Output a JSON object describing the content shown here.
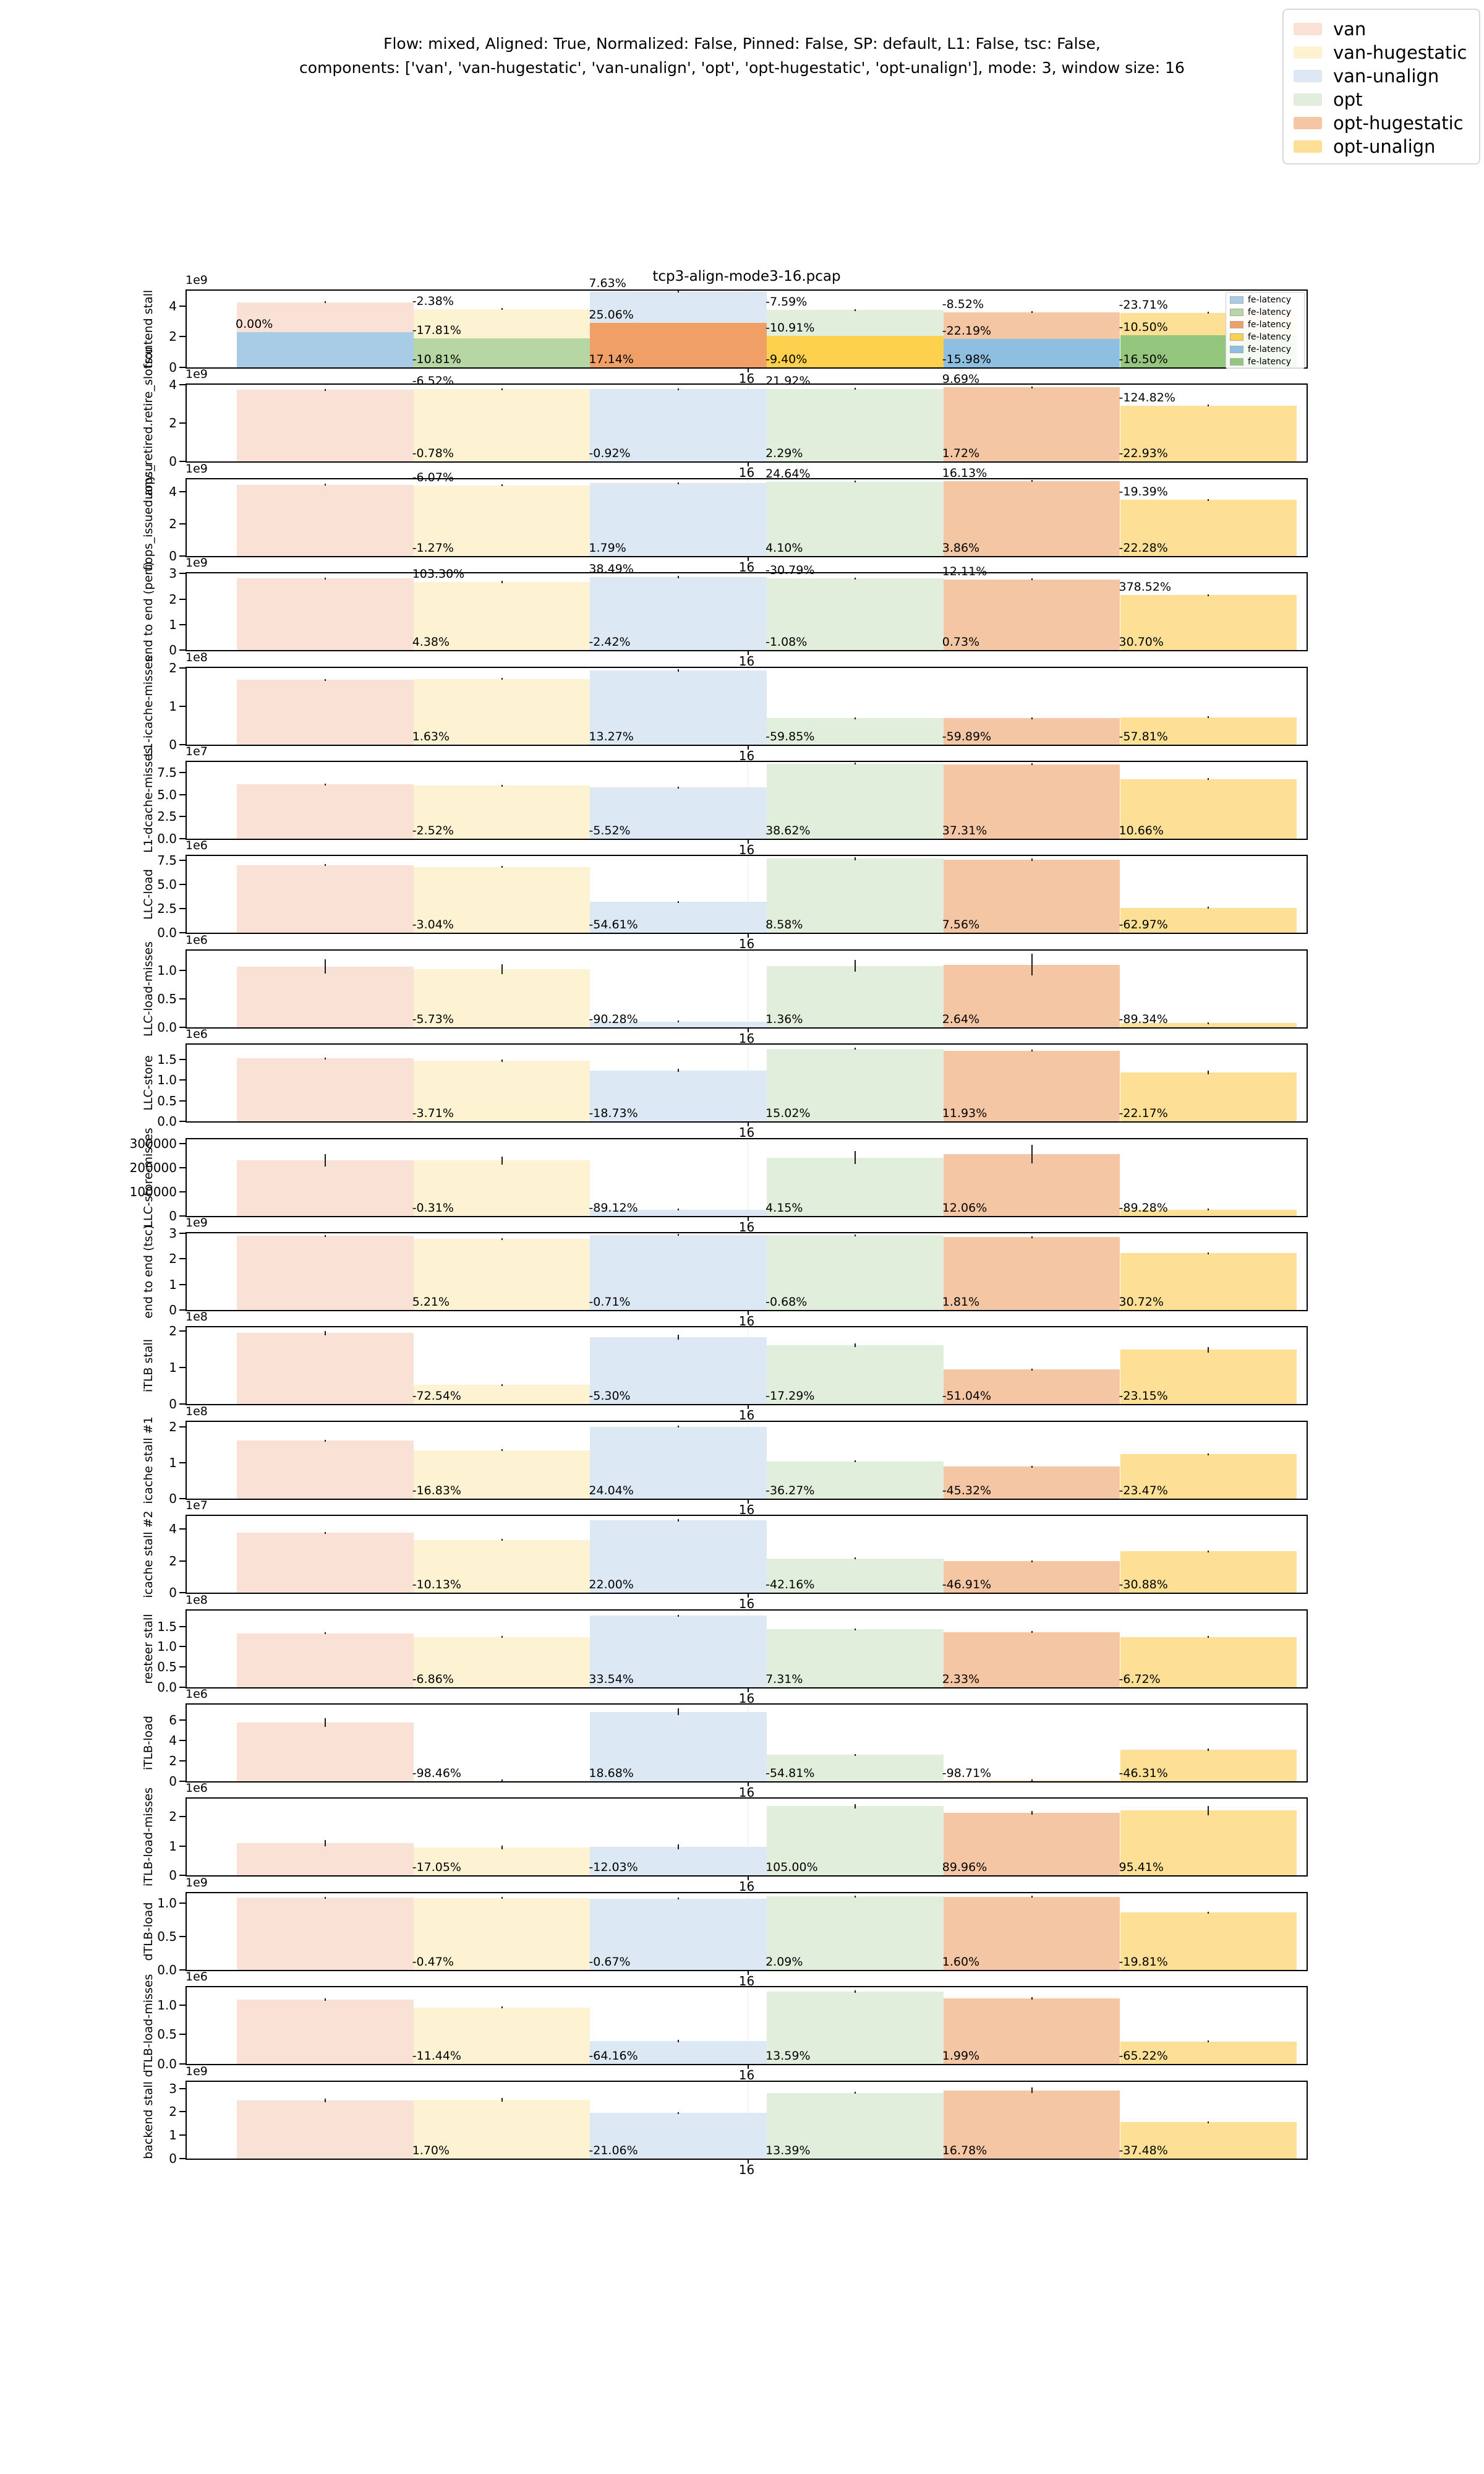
{
  "header": {
    "suptitle_line1": "Flow: mixed, Aligned: True, Normalized: False, Pinned: False, SP: default, L1: False, tsc: False,",
    "suptitle_line2": "components: ['van', 'van-hugestatic', 'van-unalign', 'opt', 'opt-hugestatic', 'opt-unalign'], mode: 3, window size: 16"
  },
  "legend": {
    "position": "upper right",
    "items": [
      {
        "label": "van",
        "color": "#fae1d5"
      },
      {
        "label": "van-hugestatic",
        "color": "#fdf3d2"
      },
      {
        "label": "van-unalign",
        "color": "#dce8f4"
      },
      {
        "label": "opt",
        "color": "#e1eedb"
      },
      {
        "label": "opt-hugestatic",
        "color": "#f5c6a4"
      },
      {
        "label": "opt-unalign",
        "color": "#fde096"
      }
    ]
  },
  "chart_data": {
    "type": "bar",
    "title": "tcp3-align-mode3-16.pcap",
    "x_tick_label": "16",
    "xlabel": "",
    "grid": false,
    "series_names": [
      "van",
      "van-hugestatic",
      "van-unalign",
      "opt",
      "opt-hugestatic",
      "opt-unalign"
    ],
    "bar_colors": [
      "#fae1d5",
      "#fdf3d2",
      "#dce8f4",
      "#e1eedb",
      "#f5c6a4",
      "#fde096"
    ],
    "fe_colors": [
      "#a9cce6",
      "#b6d7a3",
      "#f0a066",
      "#fdd04e",
      "#8fbfe0",
      "#95c67e"
    ],
    "fe_legend_label": "fe-latency",
    "subplots": [
      {
        "ylabel": "frontend stall",
        "scale": "1e9",
        "ymax": 5,
        "yticks": [
          0,
          2,
          4
        ],
        "ytick_labels": [
          "0",
          "2",
          "4"
        ],
        "values": [
          4.25,
          3.8,
          4.95,
          3.75,
          3.6,
          3.55
        ],
        "fe_values": [
          2.3,
          1.9,
          2.9,
          2.05,
          1.85,
          2.1
        ],
        "err": [
          0.05,
          0.04,
          0.06,
          0.04,
          0.05,
          0.05
        ],
        "labels_top": [
          null,
          "-2.38%",
          "7.63%",
          "-7.59%",
          "-8.52%",
          "-23.71%"
        ],
        "labels_mid": [
          "0.00%",
          "-17.81%",
          "25.06%",
          "-10.91%",
          "-22.19%",
          "-10.50%"
        ],
        "labels_bottom": [
          null,
          "-10.81%",
          "17.14%",
          "-9.40%",
          "-15.98%",
          "-16.50%"
        ]
      },
      {
        "ylabel": "uops_retired.retire_slots:u",
        "scale": "1e9",
        "ymax": 4,
        "yticks": [
          0,
          2,
          4
        ],
        "ytick_labels": [
          "0",
          "2",
          "4"
        ],
        "values": [
          3.75,
          3.78,
          3.78,
          3.8,
          3.87,
          2.93
        ],
        "err": [
          0.02,
          0.02,
          0.02,
          0.04,
          0.02,
          0.02
        ],
        "labels_top": [
          null,
          "-6.52%",
          null,
          "21.92%",
          "9.69%",
          "-124.82%"
        ],
        "labels_bottom": [
          null,
          "-0.78%",
          "-0.92%",
          "2.29%",
          "1.72%",
          "-22.93%"
        ]
      },
      {
        "ylabel": "uops_issued.any:u",
        "scale": "1e9",
        "ymax": 4.8,
        "yticks": [
          0,
          2,
          4
        ],
        "ytick_labels": [
          "0",
          "2",
          "4"
        ],
        "values": [
          4.45,
          4.42,
          4.55,
          4.65,
          4.68,
          3.5
        ],
        "err": [
          0.03,
          0.03,
          0.03,
          0.03,
          0.03,
          0.03
        ],
        "labels_top": [
          null,
          "-6.07%",
          null,
          "24.64%",
          "16.13%",
          "-19.39%"
        ],
        "labels_bottom": [
          null,
          "-1.27%",
          "1.79%",
          "4.10%",
          "3.86%",
          "-22.28%"
        ]
      },
      {
        "ylabel": "end to end (perf)",
        "scale": "1e9",
        "ymax": 3,
        "yticks": [
          0,
          1,
          2,
          3
        ],
        "ytick_labels": [
          "0",
          "1",
          "2",
          "3"
        ],
        "values": [
          2.8,
          2.67,
          2.85,
          2.8,
          2.77,
          2.15
        ],
        "err": [
          0.04,
          0.05,
          0.05,
          0.04,
          0.04,
          0.04
        ],
        "labels_top": [
          null,
          "103.30%",
          "38.49%",
          "-30.79%",
          "12.11%",
          "378.52%"
        ],
        "labels_bottom": [
          null,
          "4.38%",
          "-2.42%",
          "-1.08%",
          "0.73%",
          "30.70%"
        ]
      },
      {
        "ylabel": "L1-icache-misses",
        "scale": "1e8",
        "ymax": 2,
        "yticks": [
          0,
          1,
          2
        ],
        "ytick_labels": [
          "0",
          "1",
          "2"
        ],
        "values": [
          1.68,
          1.71,
          1.93,
          0.68,
          0.68,
          0.71
        ],
        "err": [
          0.02,
          0.02,
          0.03,
          0.01,
          0.02,
          0.01
        ],
        "labels_bottom": [
          null,
          "1.63%",
          "13.27%",
          "-59.85%",
          "-59.89%",
          "-57.81%"
        ]
      },
      {
        "ylabel": "L1-dcache-misses",
        "scale": "1e7",
        "ymax": 8.7,
        "yticks": [
          0,
          2.5,
          5,
          7.5
        ],
        "ytick_labels": [
          "0.0",
          "2.5",
          "5.0",
          "7.5"
        ],
        "values": [
          6.15,
          6.0,
          5.8,
          8.5,
          8.45,
          6.75
        ],
        "err": [
          0.08,
          0.1,
          0.08,
          0.05,
          0.05,
          0.07
        ],
        "labels_bottom": [
          null,
          "-2.52%",
          "-5.52%",
          "38.62%",
          "37.31%",
          "10.66%"
        ]
      },
      {
        "ylabel": "LLC-load",
        "scale": "1e6",
        "ymax": 7.9,
        "yticks": [
          0,
          2.5,
          5,
          7.5
        ],
        "ytick_labels": [
          "0.0",
          "2.5",
          "5.0",
          "7.5"
        ],
        "values": [
          7.0,
          6.8,
          3.2,
          7.65,
          7.55,
          2.6
        ],
        "err": [
          0.1,
          0.08,
          0.1,
          0.15,
          0.12,
          0.08
        ],
        "labels_bottom": [
          null,
          "-3.04%",
          "-54.61%",
          "8.58%",
          "7.56%",
          "-62.97%"
        ]
      },
      {
        "ylabel": "LLC-load-misses",
        "scale": "1e6",
        "ymax": 1.35,
        "yticks": [
          0,
          0.5,
          1
        ],
        "ytick_labels": [
          "0.0",
          "0.5",
          "1.0"
        ],
        "values": [
          1.07,
          1.02,
          0.1,
          1.08,
          1.1,
          0.07
        ],
        "err": [
          0.13,
          0.09,
          0.01,
          0.1,
          0.19,
          0.02
        ],
        "labels_bottom": [
          null,
          "-5.73%",
          "-90.28%",
          "1.36%",
          "2.64%",
          "-89.34%"
        ]
      },
      {
        "ylabel": "LLC-store",
        "scale": "1e6",
        "ymax": 1.85,
        "yticks": [
          0,
          0.5,
          1,
          1.5
        ],
        "ytick_labels": [
          "0.0",
          "0.5",
          "1.0",
          "1.5"
        ],
        "values": [
          1.52,
          1.46,
          1.23,
          1.75,
          1.71,
          1.18
        ],
        "err": [
          0.02,
          0.03,
          0.04,
          0.02,
          0.02,
          0.04
        ],
        "labels_bottom": [
          null,
          "-3.71%",
          "-18.73%",
          "15.02%",
          "11.93%",
          "-22.17%"
        ]
      },
      {
        "ylabel": "LLC-store-misses",
        "scale": null,
        "ymax": 320000,
        "yticks": [
          0,
          100000,
          200000,
          300000
        ],
        "ytick_labels": [
          "0",
          "100000",
          "200000",
          "300000"
        ],
        "values": [
          232000,
          230000,
          25000,
          242000,
          258000,
          25000
        ],
        "err": [
          26000,
          16000,
          3000,
          27000,
          39000,
          4000
        ],
        "labels_bottom": [
          null,
          "-0.31%",
          "-89.12%",
          "4.15%",
          "12.06%",
          "-89.28%"
        ]
      },
      {
        "ylabel": "end to end (tsc)",
        "scale": "1e9",
        "ymax": 3,
        "yticks": [
          0,
          1,
          2,
          3
        ],
        "ytick_labels": [
          "0",
          "1",
          "2",
          "3"
        ],
        "values": [
          2.9,
          2.78,
          2.93,
          2.92,
          2.85,
          2.22
        ],
        "err": [
          0.03,
          0.02,
          0.02,
          0.02,
          0.03,
          0.02
        ],
        "labels_bottom": [
          null,
          "5.21%",
          "-0.71%",
          "-0.68%",
          "1.81%",
          "30.72%"
        ]
      },
      {
        "ylabel": "iTLB stall",
        "scale": "1e8",
        "ymax": 2.1,
        "yticks": [
          0,
          1,
          2
        ],
        "ytick_labels": [
          "0",
          "1",
          "2"
        ],
        "values": [
          1.95,
          0.53,
          1.84,
          1.61,
          0.95,
          1.49
        ],
        "err": [
          0.06,
          0.02,
          0.07,
          0.05,
          0.02,
          0.08
        ],
        "labels_bottom": [
          null,
          "-72.54%",
          "-5.30%",
          "-17.29%",
          "-51.04%",
          "-23.15%"
        ]
      },
      {
        "ylabel": "icache stall #1",
        "scale": "1e8",
        "ymax": 2.15,
        "yticks": [
          0,
          1,
          2
        ],
        "ytick_labels": [
          "0",
          "1",
          "2"
        ],
        "values": [
          1.62,
          1.35,
          2.01,
          1.04,
          0.89,
          1.24
        ],
        "err": [
          0.02,
          0.02,
          0.02,
          0.02,
          0.01,
          0.02
        ],
        "labels_bottom": [
          null,
          "-16.83%",
          "24.04%",
          "-36.27%",
          "-45.32%",
          "-23.47%"
        ]
      },
      {
        "ylabel": "icache stall #2",
        "scale": "1e7",
        "ymax": 4.8,
        "yticks": [
          0,
          2,
          4
        ],
        "ytick_labels": [
          "0",
          "2",
          "4"
        ],
        "values": [
          3.75,
          3.3,
          4.55,
          2.15,
          1.98,
          2.6
        ],
        "err": [
          0.06,
          0.05,
          0.08,
          0.04,
          0.04,
          0.05
        ],
        "labels_bottom": [
          null,
          "-10.13%",
          "22.00%",
          "-42.16%",
          "-46.91%",
          "-30.88%"
        ]
      },
      {
        "ylabel": "resteer stall",
        "scale": "1e8",
        "ymax": 1.9,
        "yticks": [
          0,
          0.5,
          1,
          1.5
        ],
        "ytick_labels": [
          "0.0",
          "0.5",
          "1.0",
          "1.5"
        ],
        "values": [
          1.33,
          1.24,
          1.77,
          1.43,
          1.36,
          1.24
        ],
        "err": [
          0.02,
          0.01,
          0.02,
          0.01,
          0.02,
          0.02
        ],
        "labels_bottom": [
          null,
          "-6.86%",
          "33.54%",
          "7.31%",
          "2.33%",
          "-6.72%"
        ]
      },
      {
        "ylabel": "iTLB-load",
        "scale": "1e6",
        "ymax": 7.5,
        "yticks": [
          0,
          2,
          4,
          6
        ],
        "ytick_labels": [
          "0",
          "2",
          "4",
          "6"
        ],
        "values": [
          5.75,
          0.09,
          6.8,
          2.6,
          0.07,
          3.1
        ],
        "err": [
          0.4,
          0.02,
          0.35,
          0.05,
          0.02,
          0.12
        ],
        "labels_bottom": [
          null,
          "-98.46%",
          "18.68%",
          "-54.81%",
          "-98.71%",
          "-46.31%"
        ]
      },
      {
        "ylabel": "iTLB-load-misses",
        "scale": "1e6",
        "ymax": 2.6,
        "yticks": [
          0,
          1,
          2
        ],
        "ytick_labels": [
          "0",
          "1",
          "2"
        ],
        "values": [
          1.1,
          0.95,
          0.97,
          2.35,
          2.13,
          2.2
        ],
        "err": [
          0.11,
          0.07,
          0.09,
          0.07,
          0.06,
          0.16
        ],
        "labels_bottom": [
          null,
          "-17.05%",
          "-12.03%",
          "105.00%",
          "89.96%",
          "95.41%"
        ]
      },
      {
        "ylabel": "dTLB-load",
        "scale": "1e9",
        "ymax": 1.15,
        "yticks": [
          0,
          0.5,
          1
        ],
        "ytick_labels": [
          "0.0",
          "0.5",
          "1.0"
        ],
        "values": [
          1.08,
          1.075,
          1.065,
          1.1,
          1.095,
          0.86
        ],
        "err": [
          0.005,
          0.005,
          0.005,
          0.005,
          0.005,
          0.005
        ],
        "labels_bottom": [
          null,
          "-0.47%",
          "-0.67%",
          "2.09%",
          "1.60%",
          "-19.81%"
        ]
      },
      {
        "ylabel": "dTLB-load-misses",
        "scale": "1e6",
        "ymax": 1.3,
        "yticks": [
          0,
          0.5,
          1
        ],
        "ytick_labels": [
          "0.0",
          "0.5",
          "1.0"
        ],
        "values": [
          1.09,
          0.96,
          0.39,
          1.23,
          1.11,
          0.38
        ],
        "err": [
          0.02,
          0.01,
          0.02,
          0.02,
          0.02,
          0.01
        ],
        "labels_bottom": [
          null,
          "-11.44%",
          "-64.16%",
          "13.59%",
          "1.99%",
          "-65.22%"
        ]
      },
      {
        "ylabel": "backend stall",
        "scale": "1e9",
        "ymax": 3.3,
        "yticks": [
          0,
          1,
          2,
          3
        ],
        "ytick_labels": [
          "0",
          "1",
          "2",
          "3"
        ],
        "values": [
          2.48,
          2.52,
          1.95,
          2.82,
          2.92,
          1.55
        ],
        "err": [
          0.08,
          0.09,
          0.03,
          0.04,
          0.12,
          0.03
        ],
        "labels_bottom": [
          null,
          "1.70%",
          "-21.06%",
          "13.39%",
          "16.78%",
          "-37.48%"
        ]
      }
    ]
  }
}
